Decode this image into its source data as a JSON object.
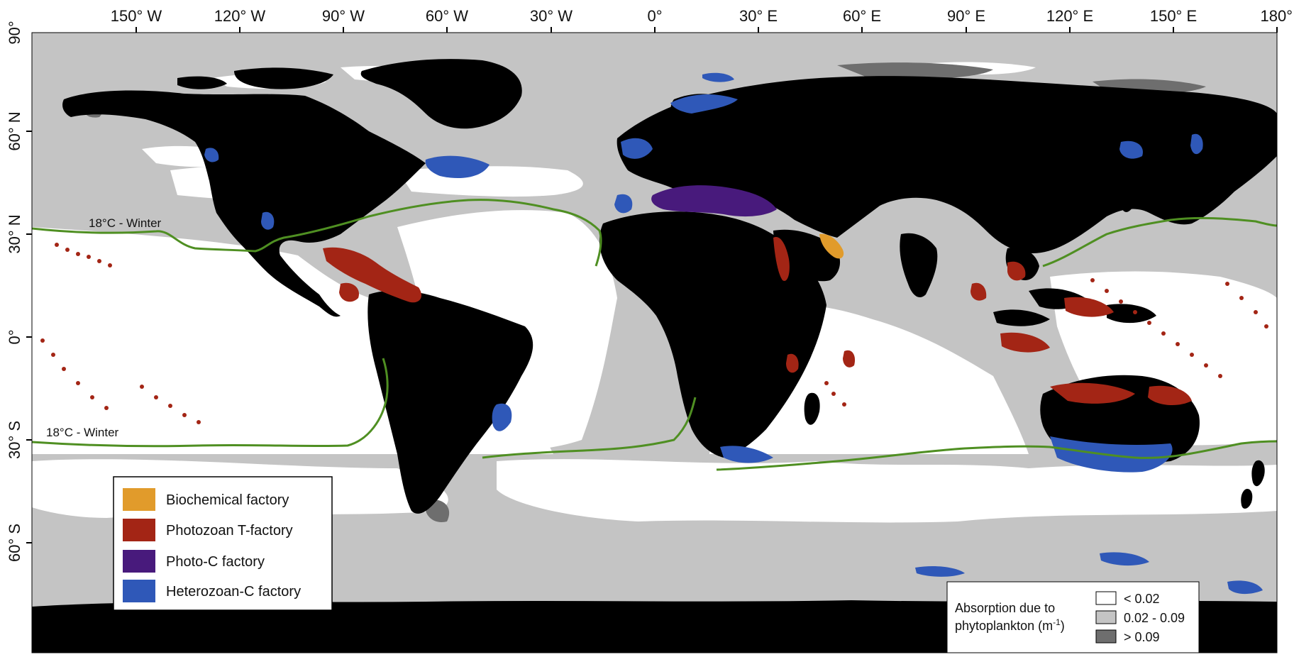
{
  "map": {
    "lon_labels": [
      "150° W",
      "120° W",
      "90° W",
      "60° W",
      "30° W",
      "0°",
      "30° E",
      "60° E",
      "90° E",
      "120° E",
      "150° E",
      "180°"
    ],
    "lat_labels": [
      "90°",
      "60° N",
      "30° N",
      "0°",
      "30° S",
      "60° S"
    ],
    "isotherm_label_north": "18°C - Winter",
    "isotherm_label_south": "18°C - Winter",
    "colors": {
      "ocean_low": "#ffffff",
      "ocean_mid": "#c4c4c4",
      "ocean_high": "#6e6e6e",
      "land": "#000000",
      "biochemical": "#e19b2b",
      "photozoan": "#a32515",
      "photo_c": "#481a7c",
      "heterozoan": "#2f58b8",
      "isotherm": "#4f8f22"
    }
  },
  "legend_factories": {
    "items": [
      {
        "label": "Biochemical factory",
        "color": "#e19b2b"
      },
      {
        "label": "Photozoan T-factory",
        "color": "#a32515"
      },
      {
        "label": "Photo-C factory",
        "color": "#481a7c"
      },
      {
        "label": "Heterozoan-C factory",
        "color": "#2f58b8"
      }
    ]
  },
  "legend_absorption": {
    "title_line1": "Absorption due to",
    "title_line2_prefix": "phytoplankton (m",
    "title_line2_sup": "-1",
    "title_line2_suffix": ")",
    "items": [
      {
        "label": "< 0.02",
        "color": "#ffffff"
      },
      {
        "label": "0.02 - 0.09",
        "color": "#c4c4c4"
      },
      {
        "label": "> 0.09",
        "color": "#6e6e6e"
      }
    ]
  }
}
